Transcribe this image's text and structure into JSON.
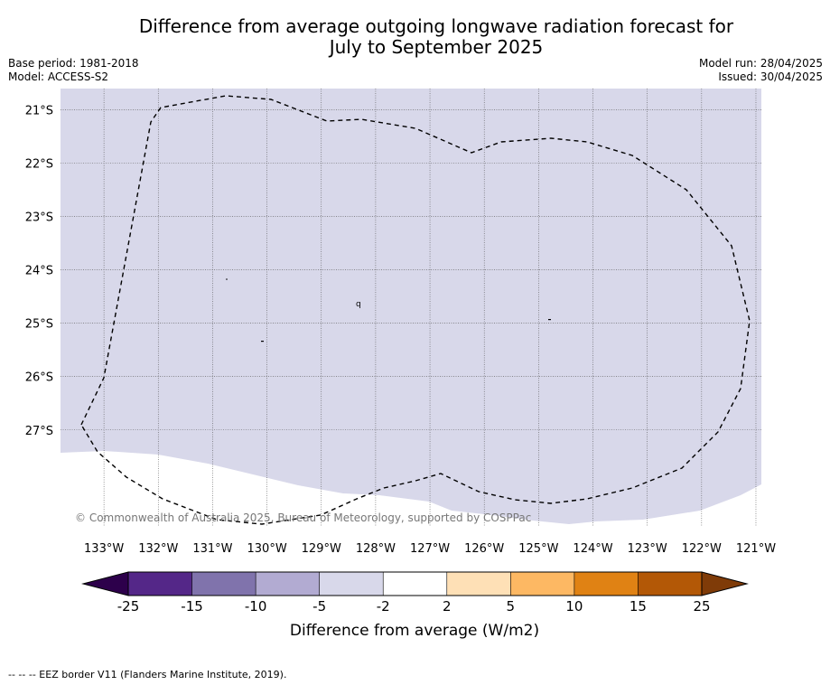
{
  "title_line1": "Difference from average outgoing longwave radiation forecast for",
  "title_line2": "July to September 2025",
  "meta": {
    "base_period": "Base period: 1981-2018",
    "model": "Model: ACCESS-S2",
    "model_run": "Model run: 28/04/2025",
    "issued": "Issued: 30/04/2025"
  },
  "map": {
    "lon_ticks": [
      "133°W",
      "132°W",
      "131°W",
      "130°W",
      "129°W",
      "128°W",
      "127°W",
      "126°W",
      "125°W",
      "124°W",
      "123°W",
      "122°W",
      "121°W"
    ],
    "lat_ticks": [
      "21°S",
      "22°S",
      "23°S",
      "24°S",
      "25°S",
      "26°S",
      "27°S"
    ],
    "lon_range": [
      -133.8,
      -120.9
    ],
    "lat_range": [
      -20.6,
      -28.8
    ],
    "fill_category": "-5 to -2",
    "fill_color": "#d8d8ea",
    "copyright": "© Commonwealth of Australia 2025, Bureau of Meteorology, supported by COSPPac"
  },
  "colorbar": {
    "label": "Difference from average (W/m2)",
    "ticks": [
      "-25",
      "-15",
      "-10",
      "-5",
      "-2",
      "2",
      "5",
      "10",
      "15",
      "25"
    ],
    "colors": [
      "#542788",
      "#8073ac",
      "#b2abd2",
      "#d8d8ea",
      "#ffffff",
      "#fee0b6",
      "#fdb863",
      "#e08214",
      "#b35806"
    ],
    "under_color": "#2d004b",
    "over_color": "#7f3b08"
  },
  "footer": "--  --  -- EEZ border V11 (Flanders Marine Institute, 2019)."
}
